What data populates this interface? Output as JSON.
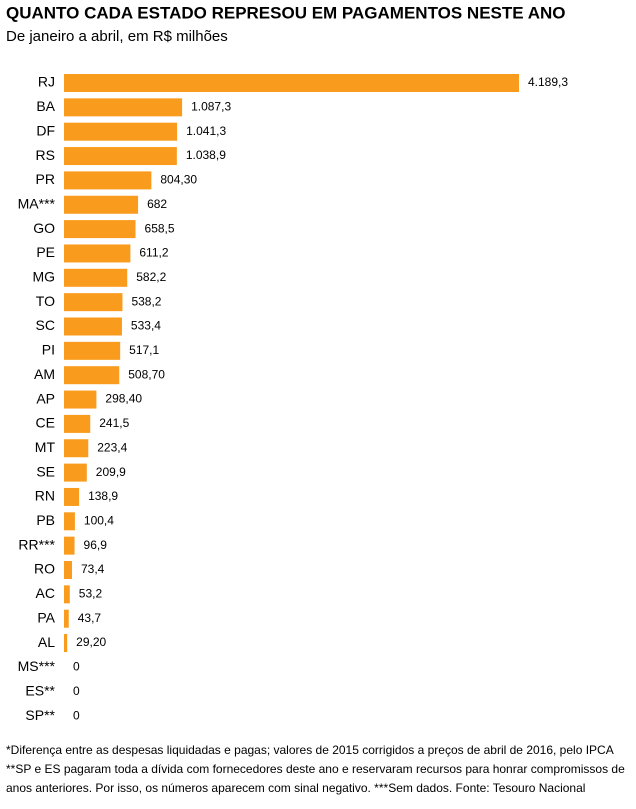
{
  "chart_data": {
    "type": "hbar",
    "title": "QUANTO CADA ESTADO REPRESOU EM PAGAMENTOS NESTE ANO",
    "subtitle": "De janeiro a abril, em R$ milhões",
    "categories": [
      "RJ",
      "BA",
      "DF",
      "RS",
      "PR",
      "MA***",
      "GO",
      "PE",
      "MG",
      "TO",
      "SC",
      "PI",
      "AM",
      "AP",
      "CE",
      "MT",
      "SE",
      "RN",
      "PB",
      "RR***",
      "RO",
      "AC",
      "PA",
      "AL",
      "MS***",
      "ES**",
      "SP**"
    ],
    "values": [
      4189.3,
      1087.3,
      1041.3,
      1038.9,
      804.3,
      682,
      658.5,
      611.2,
      582.2,
      538.2,
      533.4,
      517.1,
      508.7,
      298.4,
      241.5,
      223.4,
      209.9,
      138.9,
      100.4,
      96.9,
      73.4,
      53.2,
      43.7,
      29.2,
      0,
      0,
      0
    ],
    "value_labels": [
      "4.189,3",
      "1.087,3",
      "1.041,3",
      "1.038,9",
      "804,30",
      "682",
      "658,5",
      "611,2",
      "582,2",
      "538,2",
      "533,4",
      "517,1",
      "508,70",
      "298,40",
      "241,5",
      "223,4",
      "209,9",
      "138,9",
      "100,4",
      "96,9",
      "73,4",
      "53,2",
      "43,7",
      "29,20",
      "0",
      "0",
      "0"
    ],
    "color": "#f99b1c",
    "note": "*Diferença entre as despesas liquidadas e pagas; valores de 2015 corrigidos a preços de abril de 2016, pelo IPCA **SP e ES pagaram toda a dívida com fornecedores deste ano e reservaram recursos para honrar compromissos de anos anteriores. Por isso, os números aparecem com sinal negativo. ***Sem dados. Fonte: Tesouro Nacional"
  }
}
